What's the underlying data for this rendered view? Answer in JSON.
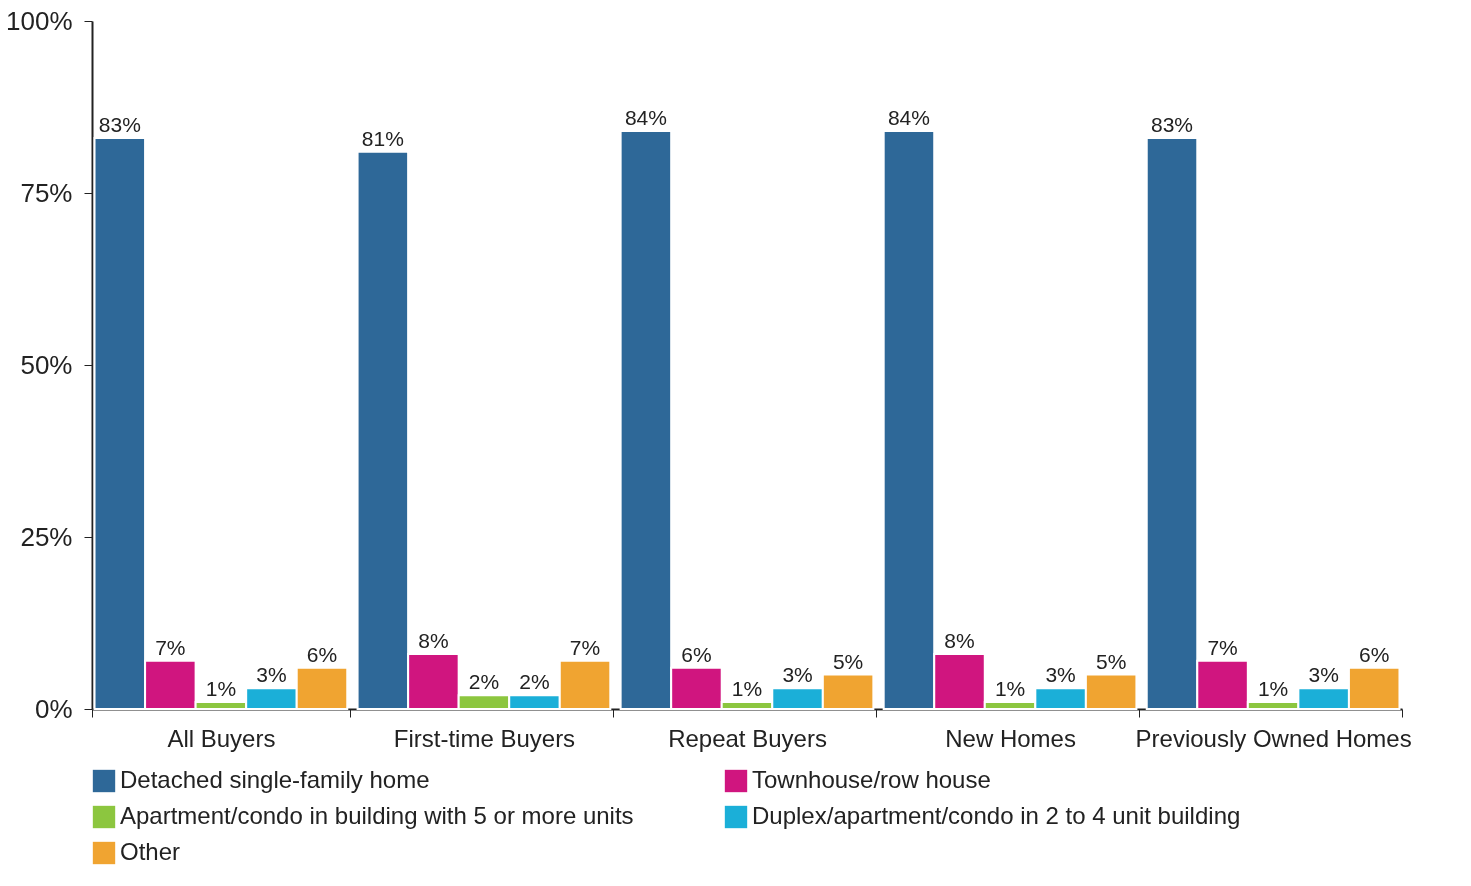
{
  "chart_data": {
    "type": "bar",
    "categories": [
      "All Buyers",
      "First-time Buyers",
      "Repeat Buyers",
      "New Homes",
      "Previously Owned Homes"
    ],
    "series": [
      {
        "name": "Detached single-family home",
        "color": "#2e6898",
        "values": [
          83,
          81,
          84,
          84,
          83
        ],
        "value_labels": [
          "83%",
          "81%",
          "84%",
          "84%",
          "83%"
        ]
      },
      {
        "name": "Townhouse/row house",
        "color": "#d0157f",
        "values": [
          7,
          8,
          6,
          8,
          7
        ],
        "value_labels": [
          "7%",
          "8%",
          "6%",
          "8%",
          "7%"
        ]
      },
      {
        "name": "Apartment/condo in building with 5 or more units",
        "color": "#8cc63f",
        "values": [
          1,
          2,
          1,
          1,
          1
        ],
        "value_labels": [
          "1%",
          "2%",
          "1%",
          "1%",
          "1%"
        ]
      },
      {
        "name": "Duplex/apartment/condo in 2 to 4 unit building",
        "color": "#1bafd8",
        "values": [
          3,
          2,
          3,
          3,
          3
        ],
        "value_labels": [
          "3%",
          "2%",
          "3%",
          "3%",
          "3%"
        ]
      },
      {
        "name": "Other",
        "color": "#f0a431",
        "values": [
          6,
          7,
          5,
          5,
          6
        ],
        "value_labels": [
          "6%",
          "7%",
          "5%",
          "5%",
          "6%"
        ]
      }
    ],
    "ylim": [
      0,
      100
    ],
    "yticks": [
      {
        "value": 0,
        "label": "0%"
      },
      {
        "value": 25,
        "label": "25%"
      },
      {
        "value": 50,
        "label": "50%"
      },
      {
        "value": 75,
        "label": "75%"
      },
      {
        "value": 100,
        "label": "100%"
      }
    ],
    "grid": false,
    "legend": "bottom"
  }
}
